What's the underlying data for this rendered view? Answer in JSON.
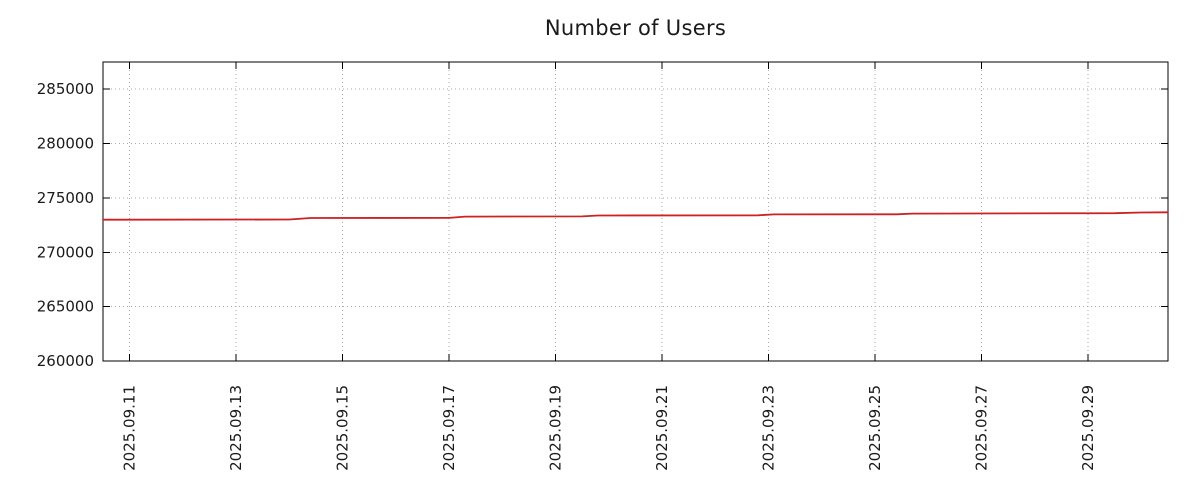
{
  "chart": {
    "background": "#ffffff",
    "border_color": "#000000",
    "grid_color": "#a9a9a9",
    "text_color": "#1a1a1a",
    "line_color": "#cc2222"
  },
  "chart_data": {
    "type": "line",
    "title": "Number of Users",
    "xlabel": "",
    "ylabel": "",
    "grid": true,
    "legend": "none",
    "xlim": [
      10.5,
      30.5
    ],
    "ylim": [
      260000,
      287500
    ],
    "x_ticks": [
      {
        "day": 11,
        "label": "2025.09.11"
      },
      {
        "day": 13,
        "label": "2025.09.13"
      },
      {
        "day": 15,
        "label": "2025.09.15"
      },
      {
        "day": 17,
        "label": "2025.09.17"
      },
      {
        "day": 19,
        "label": "2025.09.19"
      },
      {
        "day": 21,
        "label": "2025.09.21"
      },
      {
        "day": 23,
        "label": "2025.09.23"
      },
      {
        "day": 25,
        "label": "2025.09.25"
      },
      {
        "day": 27,
        "label": "2025.09.27"
      },
      {
        "day": 29,
        "label": "2025.09.29"
      }
    ],
    "y_ticks": [
      {
        "value": 260000,
        "label": "260000"
      },
      {
        "value": 265000,
        "label": "265000"
      },
      {
        "value": 270000,
        "label": "270000"
      },
      {
        "value": 275000,
        "label": "275000"
      },
      {
        "value": 280000,
        "label": "280000"
      },
      {
        "value": 285000,
        "label": "285000"
      }
    ],
    "series": [
      {
        "name": "Number of Users",
        "color": "#cc2222",
        "points": [
          [
            10.5,
            273000
          ],
          [
            14.0,
            273010
          ],
          [
            14.4,
            273150
          ],
          [
            17.0,
            273160
          ],
          [
            17.3,
            273280
          ],
          [
            19.5,
            273300
          ],
          [
            19.8,
            273380
          ],
          [
            22.8,
            273400
          ],
          [
            23.1,
            273480
          ],
          [
            25.4,
            273490
          ],
          [
            25.7,
            273560
          ],
          [
            29.5,
            273590
          ],
          [
            30.0,
            273660
          ],
          [
            30.5,
            273680
          ]
        ]
      }
    ]
  }
}
